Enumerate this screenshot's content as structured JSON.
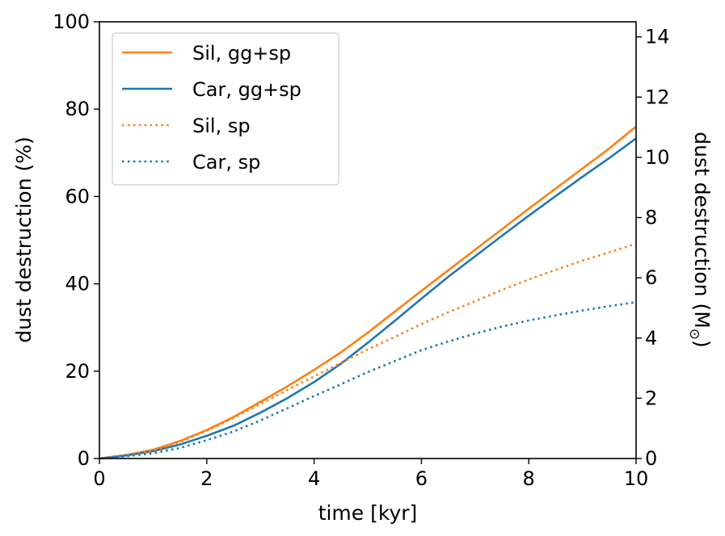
{
  "chart_data": {
    "type": "line",
    "xlabel": "time [kyr]",
    "ylabel": "dust destruction (%)",
    "y2label_main": "dust destruction (M",
    "y2label_sub": "⊙",
    "y2label_end": ")",
    "xlim": [
      0,
      10
    ],
    "ylim": [
      0,
      100
    ],
    "y2lim": [
      0,
      14.5
    ],
    "xticks": [
      0,
      2,
      4,
      6,
      8,
      10
    ],
    "yticks": [
      0,
      20,
      40,
      60,
      80,
      100
    ],
    "y2ticks": [
      0,
      2,
      4,
      6,
      8,
      10,
      12,
      14
    ],
    "legend_position": "top-left",
    "grid": false,
    "series": [
      {
        "name": "Sil, gg+sp",
        "color": "#ff7f0e",
        "style": "solid",
        "x": [
          0,
          0.5,
          1,
          1.5,
          2,
          2.5,
          3,
          3.5,
          4,
          4.5,
          5,
          5.5,
          6,
          6.5,
          7,
          7.5,
          8,
          8.5,
          9,
          9.5,
          10
        ],
        "y": [
          0,
          0.8,
          2.0,
          4.0,
          6.5,
          9.5,
          13.0,
          16.5,
          20.3,
          24.3,
          28.8,
          33.6,
          38.4,
          43.1,
          47.8,
          52.5,
          57.2,
          61.8,
          66.4,
          71.0,
          76.0
        ]
      },
      {
        "name": "Car, gg+sp",
        "color": "#1f77b4",
        "style": "solid",
        "x": [
          0,
          0.5,
          1,
          1.5,
          2,
          2.5,
          3,
          3.5,
          4,
          4.5,
          5,
          5.5,
          6,
          6.5,
          7,
          7.5,
          8,
          8.5,
          9,
          9.5,
          10
        ],
        "y": [
          0,
          0.7,
          1.7,
          3.2,
          5.2,
          7.5,
          10.5,
          13.8,
          17.5,
          21.7,
          26.5,
          31.5,
          36.6,
          41.6,
          46.3,
          51.0,
          55.6,
          60.1,
          64.5,
          68.8,
          73.3
        ]
      },
      {
        "name": "Sil, sp",
        "color": "#ff7f0e",
        "style": "dotted",
        "x": [
          0,
          0.5,
          1,
          1.5,
          2,
          2.5,
          3,
          3.5,
          4,
          4.5,
          5,
          5.5,
          6,
          6.5,
          7,
          7.5,
          8,
          8.5,
          9,
          9.5,
          10
        ],
        "y": [
          0,
          0.7,
          1.8,
          3.8,
          6.3,
          9.3,
          12.5,
          15.7,
          18.8,
          21.9,
          25.0,
          27.8,
          30.8,
          33.5,
          36.0,
          38.6,
          41.0,
          43.2,
          45.3,
          47.2,
          49.2
        ]
      },
      {
        "name": "Car, sp",
        "color": "#1f77b4",
        "style": "dotted",
        "x": [
          0,
          0.5,
          1,
          1.5,
          2,
          2.5,
          3,
          3.5,
          4,
          4.5,
          5,
          5.5,
          6,
          6.5,
          7,
          7.5,
          8,
          8.5,
          9,
          9.5,
          10
        ],
        "y": [
          0,
          0.5,
          1.2,
          2.4,
          4.2,
          6.2,
          8.7,
          11.5,
          14.3,
          17.0,
          19.8,
          22.3,
          24.8,
          26.8,
          28.6,
          30.2,
          31.6,
          32.8,
          33.9,
          34.9,
          35.8
        ]
      }
    ]
  }
}
